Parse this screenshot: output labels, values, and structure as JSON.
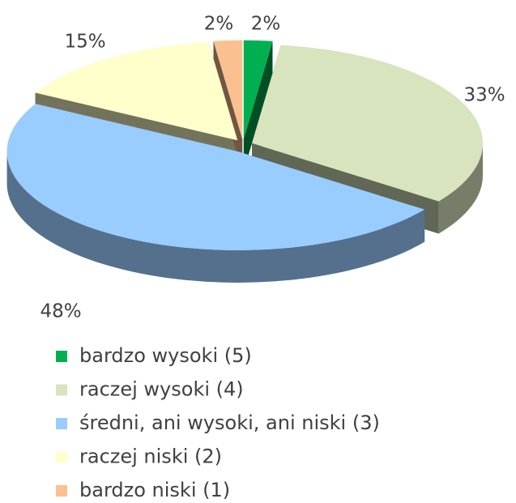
{
  "chart_data": {
    "type": "pie3d",
    "categories": [
      "bardzo wysoki (5)",
      "raczej wysoki (4)",
      "średni, ani wysoki, ani niski (3)",
      "raczej niski (2)",
      "bardzo niski (1)"
    ],
    "values": [
      2,
      33,
      48,
      15,
      2
    ],
    "value_labels": [
      "2%",
      "33%",
      "48%",
      "15%",
      "2%"
    ],
    "colors": [
      "#00b050",
      "#d7e4bd",
      "#99ccff",
      "#ffffcc",
      "#fac090"
    ],
    "legend": "bottom"
  }
}
